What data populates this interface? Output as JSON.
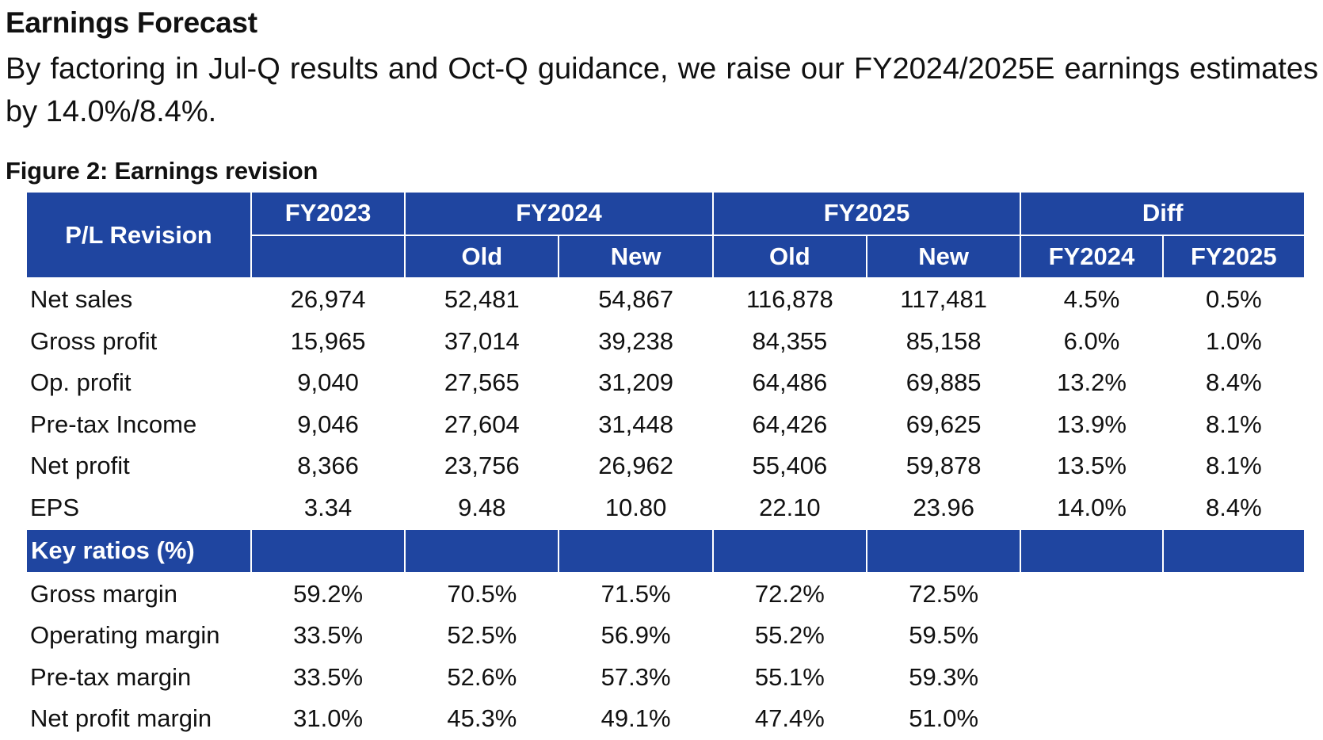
{
  "heading": "Earnings Forecast",
  "intro": "By factoring in Jul-Q results and Oct-Q guidance, we raise our FY2024/2025E earnings estimates by 14.0%/8.4%.",
  "figure_caption": "Figure 2: Earnings revision",
  "table": {
    "header": {
      "corner": "P/L Revision",
      "fy2023": "FY2023",
      "fy2024": "FY2024",
      "fy2025": "FY2025",
      "diff": "Diff",
      "fy2024_old": "Old",
      "fy2024_new": "New",
      "fy2025_old": "Old",
      "fy2025_new": "New",
      "diff_fy2024": "FY2024",
      "diff_fy2025": "FY2025"
    },
    "pl_rows": [
      {
        "label": "Net sales",
        "cells": [
          "26,974",
          "52,481",
          "54,867",
          "116,878",
          "117,481",
          "4.5%",
          "0.5%"
        ]
      },
      {
        "label": "Gross profit",
        "cells": [
          "15,965",
          "37,014",
          "39,238",
          "84,355",
          "85,158",
          "6.0%",
          "1.0%"
        ]
      },
      {
        "label": "Op. profit",
        "cells": [
          "9,040",
          "27,565",
          "31,209",
          "64,486",
          "69,885",
          "13.2%",
          "8.4%"
        ]
      },
      {
        "label": "Pre-tax Income",
        "cells": [
          "9,046",
          "27,604",
          "31,448",
          "64,426",
          "69,625",
          "13.9%",
          "8.1%"
        ]
      },
      {
        "label": "Net profit",
        "cells": [
          "8,366",
          "23,756",
          "26,962",
          "55,406",
          "59,878",
          "13.5%",
          "8.1%"
        ]
      },
      {
        "label": "EPS",
        "cells": [
          "3.34",
          "9.48",
          "10.80",
          "22.10",
          "23.96",
          "14.0%",
          "8.4%"
        ]
      }
    ],
    "ratio_section_label": "Key ratios (%)",
    "ratio_rows": [
      {
        "label": "Gross margin",
        "cells": [
          "59.2%",
          "70.5%",
          "71.5%",
          "72.2%",
          "72.5%",
          "",
          ""
        ]
      },
      {
        "label": "Operating margin",
        "cells": [
          "33.5%",
          "52.5%",
          "56.9%",
          "55.2%",
          "59.5%",
          "",
          ""
        ]
      },
      {
        "label": "Pre-tax margin",
        "cells": [
          "33.5%",
          "52.6%",
          "57.3%",
          "55.1%",
          "59.3%",
          "",
          ""
        ]
      },
      {
        "label": "Net profit margin",
        "cells": [
          "31.0%",
          "45.3%",
          "49.1%",
          "47.4%",
          "51.0%",
          "",
          ""
        ]
      }
    ]
  },
  "colors": {
    "header_fill": "#1f45a0",
    "header_text": "#ffffff",
    "body_text": "#111111"
  }
}
